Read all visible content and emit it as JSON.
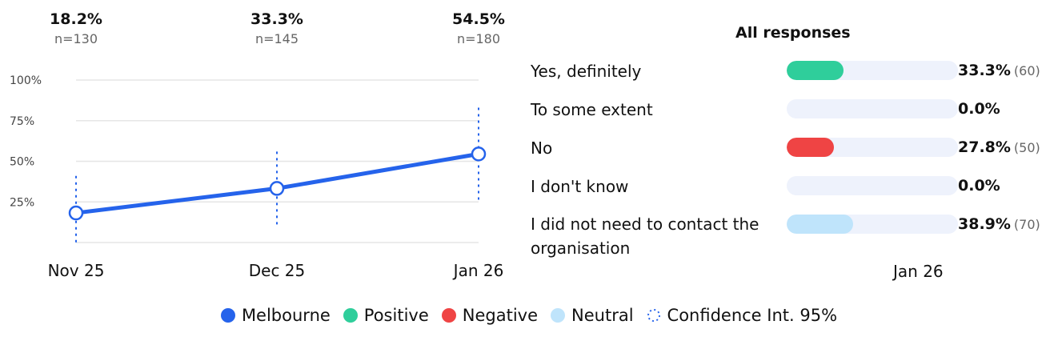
{
  "colors": {
    "melbourne": "#2563eb",
    "positive": "#2fce9b",
    "negative": "#ef4444",
    "neutral": "#bfe4fb",
    "track": "#eef2fc",
    "grid": "#e6e6e6"
  },
  "chart_data": [
    {
      "type": "line",
      "x": [
        "Nov 25",
        "Dec 25",
        "Jan 26"
      ],
      "series": [
        {
          "name": "Melbourne",
          "values": [
            18.2,
            33.3,
            54.5
          ],
          "ci_low": [
            0,
            10,
            25
          ],
          "ci_high": [
            41,
            56,
            83
          ]
        }
      ],
      "top_labels": [
        {
          "pct": "18.2%",
          "n": "n=130"
        },
        {
          "pct": "33.3%",
          "n": "n=145"
        },
        {
          "pct": "54.5%",
          "n": "n=180"
        }
      ],
      "y_ticks": [
        {
          "value": 100,
          "label": "100%"
        },
        {
          "value": 75,
          "label": "75%"
        },
        {
          "value": 50,
          "label": "50%"
        },
        {
          "value": 25,
          "label": "25%"
        }
      ],
      "ylim": [
        0,
        100
      ],
      "grid": true
    },
    {
      "type": "bar",
      "orientation": "horizontal",
      "title": "All responses",
      "xlabel": "Jan 26",
      "categories": [
        "Yes, definitely",
        "To some extent",
        "No",
        "I don't know",
        "I did not need to contact the organisation"
      ],
      "values": [
        33.3,
        0.0,
        27.8,
        0.0,
        38.9
      ],
      "value_labels": [
        "33.3%",
        "0.0%",
        "27.8%",
        "0.0%",
        "38.9%"
      ],
      "counts": [
        "(60)",
        "",
        "(50)",
        "",
        "(70)"
      ],
      "bar_colors": [
        "positive",
        "none",
        "negative",
        "none",
        "neutral"
      ],
      "xlim": [
        0,
        100
      ]
    }
  ],
  "legend": [
    {
      "label": "Melbourne",
      "color_key": "melbourne",
      "kind": "dot"
    },
    {
      "label": "Positive",
      "color_key": "positive",
      "kind": "dot"
    },
    {
      "label": "Negative",
      "color_key": "negative",
      "kind": "dot"
    },
    {
      "label": "Neutral",
      "color_key": "neutral",
      "kind": "dot"
    },
    {
      "label": "Confidence Int. 95%",
      "color_key": "melbourne",
      "kind": "ci"
    }
  ]
}
